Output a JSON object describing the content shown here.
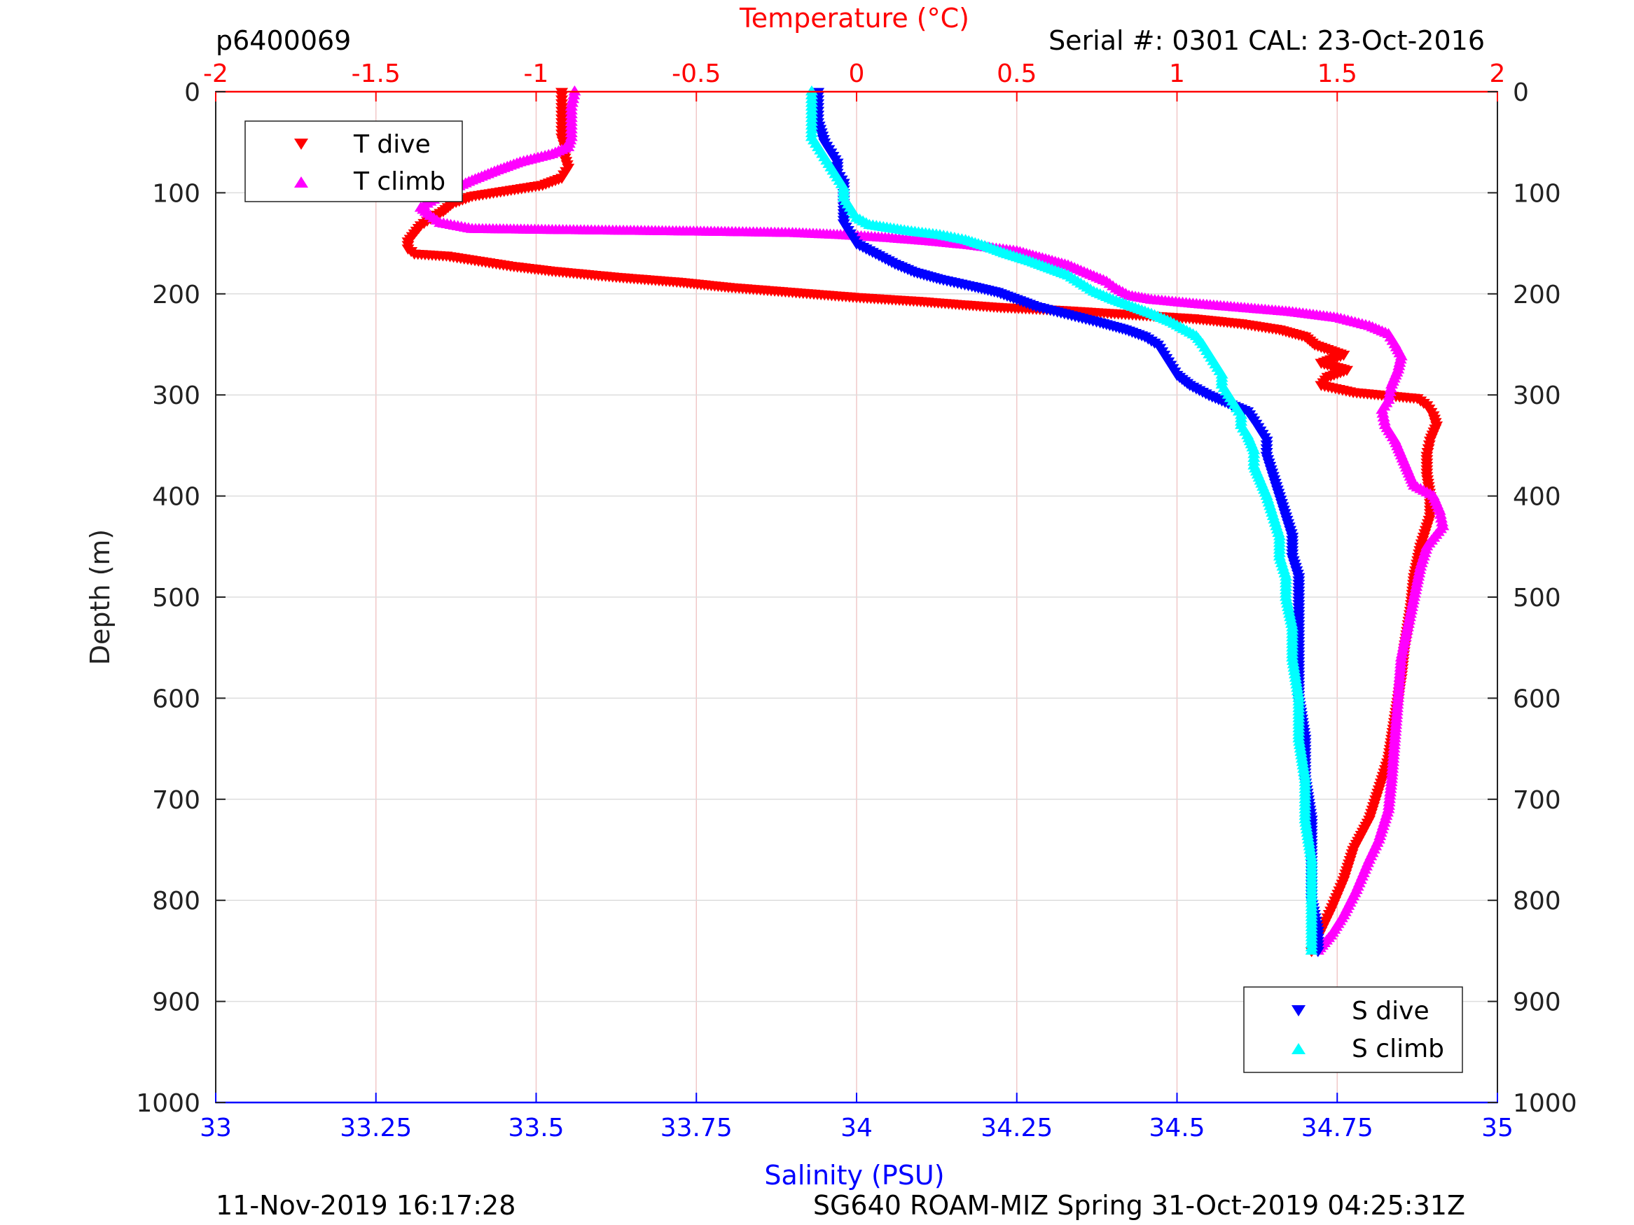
{
  "header": {
    "left": "p6400069",
    "right": "Serial #: 0301  CAL: 23-Oct-2016"
  },
  "footer": {
    "left": "11-Nov-2019 16:17:28",
    "right": "SG640 ROAM-MIZ Spring 31-Oct-2019 04:25:31Z"
  },
  "colors": {
    "t_dive": "#ff0000",
    "t_climb": "#ff00ff",
    "s_dive": "#0000ff",
    "s_climb": "#00ffff",
    "temp_axis": "#ff0000",
    "sal_axis": "#0000ff",
    "grid_vertical": "#f0c8c8",
    "grid_horizontal": "#dddddd"
  },
  "chart_data": {
    "type": "scatter",
    "yaxis": {
      "label": "Depth (m)",
      "range": [
        0,
        1000
      ],
      "reversed": true,
      "ticks": [
        "0",
        "100",
        "200",
        "300",
        "400",
        "500",
        "600",
        "700",
        "800",
        "900",
        "1000"
      ],
      "tick_values": [
        0,
        100,
        200,
        300,
        400,
        500,
        600,
        700,
        800,
        900,
        1000
      ]
    },
    "temp_axis": {
      "label": "Temperature (°C)",
      "position": "top",
      "range": [
        -2,
        2
      ],
      "ticks": [
        "-2",
        "-1.5",
        "-1",
        "-0.5",
        "0",
        "0.5",
        "1",
        "1.5",
        "2"
      ],
      "tick_values": [
        -2,
        -1.5,
        -1,
        -0.5,
        0,
        0.5,
        1,
        1.5,
        2
      ]
    },
    "sal_axis": {
      "label": "Salinity (PSU)",
      "position": "bottom",
      "range": [
        33,
        35
      ],
      "ticks": [
        "33",
        "33.25",
        "33.5",
        "33.75",
        "34",
        "34.25",
        "34.5",
        "34.75",
        "35"
      ],
      "tick_values": [
        33,
        33.25,
        33.5,
        33.75,
        34,
        34.25,
        34.5,
        34.75,
        35
      ]
    },
    "grid": true,
    "legends": [
      {
        "placement": "top-left",
        "entries": [
          {
            "label": "T dive",
            "marker": "down-triangle",
            "color": "#ff0000"
          },
          {
            "label": "T climb",
            "marker": "up-triangle",
            "color": "#ff00ff"
          }
        ]
      },
      {
        "placement": "bottom-right",
        "entries": [
          {
            "label": "S dive",
            "marker": "down-triangle",
            "color": "#0000ff"
          },
          {
            "label": "S climb",
            "marker": "up-triangle",
            "color": "#00ffff"
          }
        ]
      }
    ],
    "series": [
      {
        "name": "T dive",
        "axis": "temp",
        "marker": "down-triangle",
        "color": "#ff0000",
        "points": [
          [
            -0.92,
            0
          ],
          [
            -0.92,
            15
          ],
          [
            -0.92,
            30
          ],
          [
            -0.92,
            45
          ],
          [
            -0.91,
            55
          ],
          [
            -0.91,
            65
          ],
          [
            -0.9,
            75
          ],
          [
            -0.92,
            85
          ],
          [
            -0.98,
            92
          ],
          [
            -1.1,
            98
          ],
          [
            -1.2,
            103
          ],
          [
            -1.26,
            110
          ],
          [
            -1.29,
            118
          ],
          [
            -1.33,
            125
          ],
          [
            -1.36,
            132
          ],
          [
            -1.38,
            140
          ],
          [
            -1.4,
            148
          ],
          [
            -1.4,
            155
          ],
          [
            -1.38,
            160
          ],
          [
            -1.28,
            162
          ],
          [
            -1.18,
            167
          ],
          [
            -1.08,
            172
          ],
          [
            -0.95,
            177
          ],
          [
            -0.75,
            183
          ],
          [
            -0.55,
            188
          ],
          [
            -0.4,
            193
          ],
          [
            -0.2,
            198
          ],
          [
            0.0,
            203
          ],
          [
            0.2,
            207
          ],
          [
            0.32,
            210
          ],
          [
            0.45,
            213
          ],
          [
            0.65,
            216
          ],
          [
            0.85,
            220
          ],
          [
            1.05,
            224
          ],
          [
            1.2,
            229
          ],
          [
            1.32,
            235
          ],
          [
            1.4,
            242
          ],
          [
            1.43,
            250
          ],
          [
            1.52,
            260
          ],
          [
            1.45,
            268
          ],
          [
            1.53,
            275
          ],
          [
            1.47,
            282
          ],
          [
            1.45,
            290
          ],
          [
            1.55,
            297
          ],
          [
            1.65,
            300
          ],
          [
            1.75,
            303
          ],
          [
            1.78,
            310
          ],
          [
            1.8,
            320
          ],
          [
            1.81,
            330
          ],
          [
            1.79,
            345
          ],
          [
            1.78,
            360
          ],
          [
            1.78,
            380
          ],
          [
            1.79,
            400
          ],
          [
            1.79,
            420
          ],
          [
            1.76,
            450
          ],
          [
            1.74,
            480
          ],
          [
            1.73,
            510
          ],
          [
            1.71,
            550
          ],
          [
            1.7,
            580
          ],
          [
            1.68,
            620
          ],
          [
            1.66,
            660
          ],
          [
            1.63,
            690
          ],
          [
            1.6,
            720
          ],
          [
            1.55,
            750
          ],
          [
            1.52,
            780
          ],
          [
            1.48,
            810
          ],
          [
            1.45,
            830
          ],
          [
            1.42,
            850
          ]
        ]
      },
      {
        "name": "T climb",
        "axis": "temp",
        "marker": "up-triangle",
        "color": "#ff00ff",
        "points": [
          [
            -0.88,
            0
          ],
          [
            -0.89,
            15
          ],
          [
            -0.89,
            30
          ],
          [
            -0.89,
            45
          ],
          [
            -0.9,
            55
          ],
          [
            -0.95,
            62
          ],
          [
            -1.05,
            70
          ],
          [
            -1.12,
            78
          ],
          [
            -1.2,
            88
          ],
          [
            -1.27,
            98
          ],
          [
            -1.32,
            107
          ],
          [
            -1.36,
            115
          ],
          [
            -1.33,
            123
          ],
          [
            -1.3,
            130
          ],
          [
            -1.2,
            136
          ],
          [
            -0.95,
            137
          ],
          [
            -0.65,
            138
          ],
          [
            -0.4,
            139
          ],
          [
            -0.2,
            140
          ],
          [
            -0.05,
            142
          ],
          [
            0.1,
            145
          ],
          [
            0.22,
            148
          ],
          [
            0.35,
            152
          ],
          [
            0.5,
            158
          ],
          [
            0.58,
            165
          ],
          [
            0.66,
            172
          ],
          [
            0.72,
            180
          ],
          [
            0.78,
            188
          ],
          [
            0.81,
            195
          ],
          [
            0.85,
            202
          ],
          [
            0.92,
            206
          ],
          [
            1.05,
            210
          ],
          [
            1.2,
            214
          ],
          [
            1.35,
            218
          ],
          [
            1.5,
            224
          ],
          [
            1.6,
            232
          ],
          [
            1.66,
            240
          ],
          [
            1.68,
            250
          ],
          [
            1.7,
            262
          ],
          [
            1.69,
            275
          ],
          [
            1.67,
            290
          ],
          [
            1.66,
            305
          ],
          [
            1.64,
            315
          ],
          [
            1.65,
            330
          ],
          [
            1.68,
            345
          ],
          [
            1.7,
            360
          ],
          [
            1.72,
            375
          ],
          [
            1.74,
            390
          ],
          [
            1.8,
            400
          ],
          [
            1.82,
            415
          ],
          [
            1.83,
            430
          ],
          [
            1.78,
            450
          ],
          [
            1.76,
            470
          ],
          [
            1.74,
            500
          ],
          [
            1.72,
            530
          ],
          [
            1.7,
            560
          ],
          [
            1.69,
            600
          ],
          [
            1.68,
            640
          ],
          [
            1.67,
            680
          ],
          [
            1.66,
            710
          ],
          [
            1.63,
            740
          ],
          [
            1.6,
            760
          ],
          [
            1.56,
            790
          ],
          [
            1.52,
            815
          ],
          [
            1.48,
            835
          ],
          [
            1.44,
            850
          ]
        ]
      },
      {
        "name": "S dive",
        "axis": "sal",
        "marker": "down-triangle",
        "color": "#0000ff",
        "points": [
          [
            33.94,
            0
          ],
          [
            33.94,
            15
          ],
          [
            33.94,
            30
          ],
          [
            33.95,
            50
          ],
          [
            33.96,
            60
          ],
          [
            33.97,
            70
          ],
          [
            33.97,
            80
          ],
          [
            33.98,
            90
          ],
          [
            33.98,
            100
          ],
          [
            33.98,
            110
          ],
          [
            33.98,
            120
          ],
          [
            33.98,
            130
          ],
          [
            33.99,
            140
          ],
          [
            34.0,
            150
          ],
          [
            34.03,
            160
          ],
          [
            34.06,
            170
          ],
          [
            34.09,
            178
          ],
          [
            34.13,
            185
          ],
          [
            34.18,
            192
          ],
          [
            34.22,
            198
          ],
          [
            34.25,
            205
          ],
          [
            34.28,
            212
          ],
          [
            34.33,
            220
          ],
          [
            34.38,
            228
          ],
          [
            34.42,
            235
          ],
          [
            34.45,
            242
          ],
          [
            34.47,
            250
          ],
          [
            34.48,
            260
          ],
          [
            34.49,
            270
          ],
          [
            34.5,
            280
          ],
          [
            34.52,
            290
          ],
          [
            34.55,
            300
          ],
          [
            34.58,
            308
          ],
          [
            34.61,
            316
          ],
          [
            34.62,
            325
          ],
          [
            34.63,
            335
          ],
          [
            34.64,
            345
          ],
          [
            34.64,
            360
          ],
          [
            34.65,
            380
          ],
          [
            34.66,
            400
          ],
          [
            34.67,
            420
          ],
          [
            34.68,
            440
          ],
          [
            34.68,
            460
          ],
          [
            34.69,
            480
          ],
          [
            34.69,
            500
          ],
          [
            34.69,
            530
          ],
          [
            34.69,
            560
          ],
          [
            34.69,
            600
          ],
          [
            34.7,
            640
          ],
          [
            34.7,
            680
          ],
          [
            34.71,
            720
          ],
          [
            34.71,
            760
          ],
          [
            34.71,
            800
          ],
          [
            34.72,
            830
          ],
          [
            34.72,
            850
          ]
        ]
      },
      {
        "name": "S climb",
        "axis": "sal",
        "marker": "up-triangle",
        "color": "#00ffff",
        "points": [
          [
            33.93,
            0
          ],
          [
            33.93,
            15
          ],
          [
            33.93,
            30
          ],
          [
            33.93,
            45
          ],
          [
            33.94,
            55
          ],
          [
            33.95,
            65
          ],
          [
            33.96,
            75
          ],
          [
            33.97,
            85
          ],
          [
            33.98,
            95
          ],
          [
            33.98,
            105
          ],
          [
            33.99,
            115
          ],
          [
            34.0,
            125
          ],
          [
            34.02,
            132
          ],
          [
            34.08,
            138
          ],
          [
            34.13,
            142
          ],
          [
            34.17,
            147
          ],
          [
            34.2,
            153
          ],
          [
            34.23,
            160
          ],
          [
            34.27,
            168
          ],
          [
            34.3,
            175
          ],
          [
            34.33,
            182
          ],
          [
            34.35,
            190
          ],
          [
            34.37,
            198
          ],
          [
            34.4,
            206
          ],
          [
            34.43,
            213
          ],
          [
            34.46,
            220
          ],
          [
            34.49,
            228
          ],
          [
            34.51,
            235
          ],
          [
            34.53,
            242
          ],
          [
            34.54,
            250
          ],
          [
            34.55,
            260
          ],
          [
            34.56,
            270
          ],
          [
            34.57,
            280
          ],
          [
            34.57,
            290
          ],
          [
            34.58,
            300
          ],
          [
            34.59,
            310
          ],
          [
            34.6,
            320
          ],
          [
            34.6,
            330
          ],
          [
            34.61,
            340
          ],
          [
            34.62,
            355
          ],
          [
            34.62,
            370
          ],
          [
            34.63,
            385
          ],
          [
            34.64,
            400
          ],
          [
            34.65,
            420
          ],
          [
            34.66,
            440
          ],
          [
            34.66,
            460
          ],
          [
            34.67,
            480
          ],
          [
            34.67,
            500
          ],
          [
            34.68,
            530
          ],
          [
            34.68,
            560
          ],
          [
            34.69,
            600
          ],
          [
            34.69,
            640
          ],
          [
            34.7,
            680
          ],
          [
            34.7,
            720
          ],
          [
            34.71,
            760
          ],
          [
            34.71,
            800
          ],
          [
            34.71,
            830
          ],
          [
            34.71,
            850
          ]
        ]
      }
    ]
  }
}
